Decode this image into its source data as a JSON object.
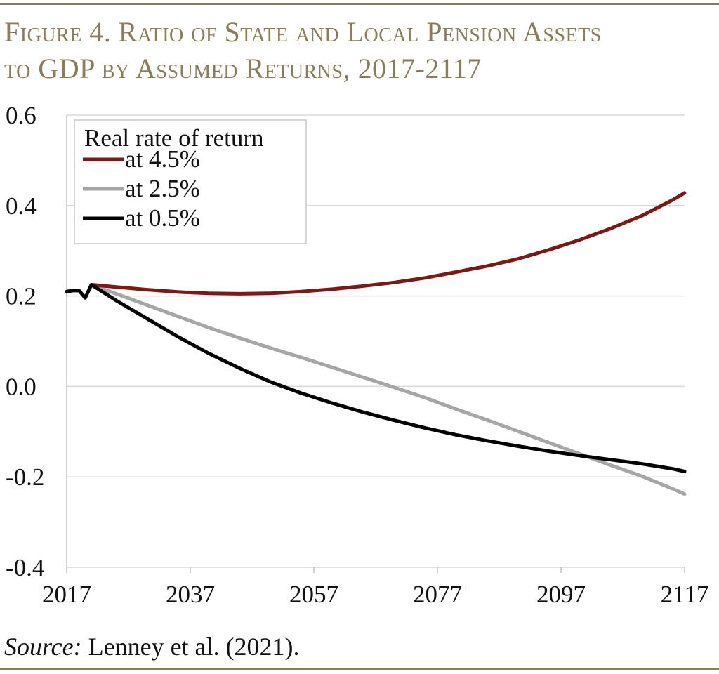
{
  "title_line1": "Figure 4. Ratio of State and Local Pension Assets",
  "title_line2": "to GDP by Assumed Returns, 2017-2117",
  "source": {
    "label": "Source:",
    "text": " Lenney et al. (2021)."
  },
  "colors": {
    "accent": "#8a7d5c",
    "series_4_5": "#7a1a14",
    "series_2_5": "#a6a6a6",
    "series_0_5": "#000000",
    "grid": "#d9d9d9"
  },
  "chart_data": {
    "type": "line",
    "xlim": [
      2017,
      2117
    ],
    "ylim": [
      -0.4,
      0.6
    ],
    "x_ticks": [
      "2017",
      "2037",
      "2057",
      "2077",
      "2097",
      "2117"
    ],
    "y_ticks": [
      "0.6",
      "0.4",
      "0.2",
      "0.0",
      "-0.2",
      "-0.4"
    ],
    "grid": "horizontal",
    "legend": {
      "title": "Real rate of return",
      "position": "top-left"
    },
    "series": [
      {
        "name": "at 4.5%",
        "color": "#7a1a14",
        "points": [
          [
            2021,
            0.225
          ],
          [
            2025,
            0.22
          ],
          [
            2030,
            0.214
          ],
          [
            2035,
            0.209
          ],
          [
            2040,
            0.206
          ],
          [
            2045,
            0.205
          ],
          [
            2050,
            0.206
          ],
          [
            2055,
            0.21
          ],
          [
            2060,
            0.215
          ],
          [
            2065,
            0.222
          ],
          [
            2070,
            0.23
          ],
          [
            2075,
            0.24
          ],
          [
            2080,
            0.253
          ],
          [
            2085,
            0.266
          ],
          [
            2090,
            0.282
          ],
          [
            2095,
            0.302
          ],
          [
            2100,
            0.324
          ],
          [
            2105,
            0.349
          ],
          [
            2110,
            0.377
          ],
          [
            2115,
            0.412
          ],
          [
            2117,
            0.428
          ]
        ]
      },
      {
        "name": "at 2.5%",
        "color": "#a6a6a6",
        "points": [
          [
            2021,
            0.225
          ],
          [
            2025,
            0.205
          ],
          [
            2030,
            0.18
          ],
          [
            2035,
            0.155
          ],
          [
            2040,
            0.13
          ],
          [
            2045,
            0.107
          ],
          [
            2050,
            0.085
          ],
          [
            2055,
            0.064
          ],
          [
            2060,
            0.042
          ],
          [
            2065,
            0.02
          ],
          [
            2070,
            -0.002
          ],
          [
            2075,
            -0.025
          ],
          [
            2080,
            -0.05
          ],
          [
            2085,
            -0.074
          ],
          [
            2090,
            -0.099
          ],
          [
            2095,
            -0.124
          ],
          [
            2100,
            -0.149
          ],
          [
            2105,
            -0.174
          ],
          [
            2110,
            -0.198
          ],
          [
            2115,
            -0.226
          ],
          [
            2117,
            -0.238
          ]
        ]
      },
      {
        "name": "at 0.5%",
        "color": "#000000",
        "points": [
          [
            2017,
            0.21
          ],
          [
            2018,
            0.212
          ],
          [
            2019,
            0.212
          ],
          [
            2020,
            0.196
          ],
          [
            2021,
            0.225
          ],
          [
            2025,
            0.19
          ],
          [
            2030,
            0.15
          ],
          [
            2035,
            0.11
          ],
          [
            2040,
            0.073
          ],
          [
            2045,
            0.04
          ],
          [
            2050,
            0.01
          ],
          [
            2055,
            -0.015
          ],
          [
            2060,
            -0.037
          ],
          [
            2065,
            -0.057
          ],
          [
            2070,
            -0.075
          ],
          [
            2075,
            -0.092
          ],
          [
            2080,
            -0.107
          ],
          [
            2085,
            -0.12
          ],
          [
            2090,
            -0.132
          ],
          [
            2095,
            -0.143
          ],
          [
            2100,
            -0.153
          ],
          [
            2105,
            -0.162
          ],
          [
            2110,
            -0.171
          ],
          [
            2115,
            -0.182
          ],
          [
            2117,
            -0.188
          ]
        ]
      }
    ]
  }
}
